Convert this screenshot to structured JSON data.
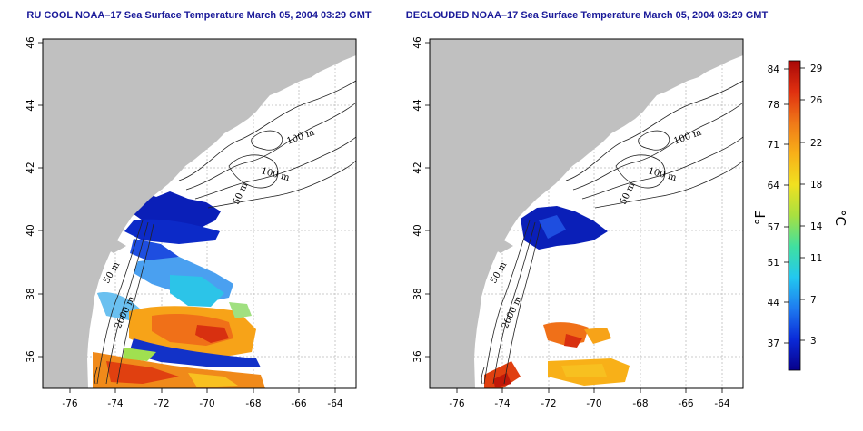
{
  "maps": [
    {
      "title": "RU COOL NOAA–17 Sea Surface Temperature March 05, 2004 03:29 GMT",
      "x_ticks": [
        "-76",
        "-74",
        "-72",
        "-70",
        "-68",
        "-66",
        "-64"
      ],
      "y_ticks": [
        "36",
        "38",
        "40",
        "42",
        "44",
        "46"
      ],
      "contour_labels": [
        "100 m",
        "100 m",
        "50 m",
        "50 m",
        "2000 m"
      ],
      "cloud_filtered": false
    },
    {
      "title": "DECLOUDED NOAA–17 Sea Surface Temperature March 05, 2004 03:29 GMT",
      "x_ticks": [
        "-76",
        "-74",
        "-72",
        "-70",
        "-68",
        "-66",
        "-64"
      ],
      "y_ticks": [
        "36",
        "38",
        "40",
        "42",
        "44",
        "46"
      ],
      "contour_labels": [
        "100 m",
        "100 m",
        "50 m",
        "50 m",
        "2000 m"
      ],
      "cloud_filtered": true
    }
  ],
  "colorbar": {
    "unit_left": "°F",
    "unit_right": "°C",
    "f_ticks": [
      "84",
      "78",
      "71",
      "64",
      "57",
      "51",
      "44",
      "37"
    ],
    "c_ticks": [
      "29",
      "26",
      "22",
      "18",
      "14",
      "11",
      "7",
      "3"
    ],
    "colors": [
      "#08008a",
      "#0a2ad8",
      "#1e7bf0",
      "#22c8f0",
      "#40e0a0",
      "#a8e040",
      "#f0e020",
      "#f8b018",
      "#f07818",
      "#e03010",
      "#a80808"
    ]
  },
  "colors": {
    "land": "#c0c0c0",
    "title": "#1a1a99",
    "grid": "#bbbbbb"
  }
}
